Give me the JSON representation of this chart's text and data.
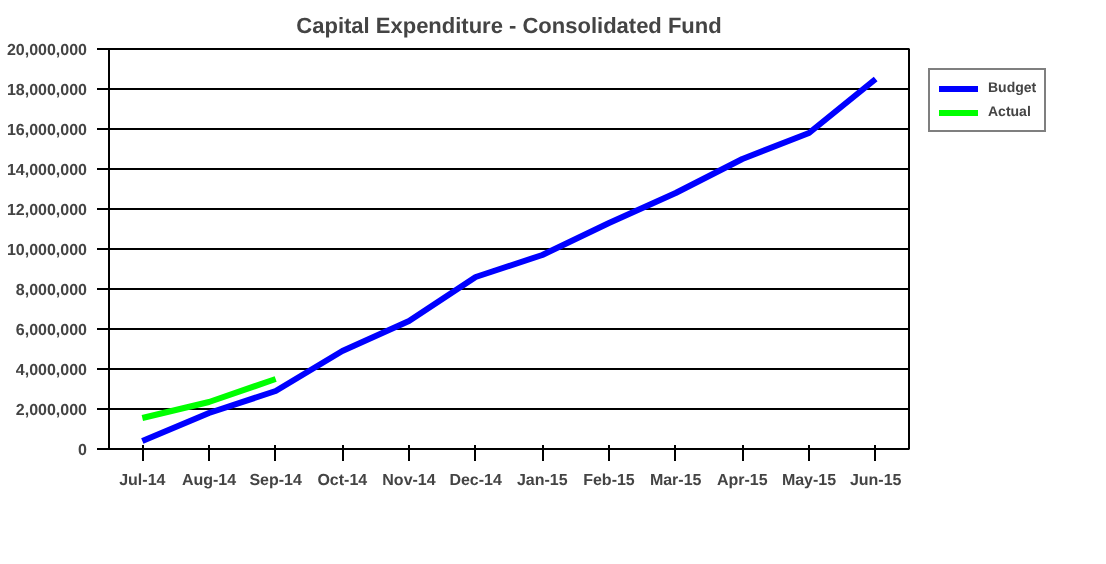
{
  "chart_data": {
    "type": "line",
    "title": "Capital Expenditure - Consolidated Fund",
    "categories": [
      "Jul-14",
      "Aug-14",
      "Sep-14",
      "Oct-14",
      "Nov-14",
      "Dec-14",
      "Jan-15",
      "Feb-15",
      "Mar-15",
      "Apr-15",
      "May-15",
      "Jun-15"
    ],
    "series": [
      {
        "name": "Budget",
        "color": "#0000ff",
        "values": [
          400000,
          1800000,
          2900000,
          4900000,
          6400000,
          8600000,
          9700000,
          11300000,
          12800000,
          14500000,
          15800000,
          18500000
        ]
      },
      {
        "name": "Actual",
        "color": "#00ff00",
        "values": [
          1550000,
          2350000,
          3500000,
          null,
          null,
          null,
          null,
          null,
          null,
          null,
          null,
          null
        ]
      }
    ],
    "ylim": [
      0,
      20000000
    ],
    "yticks": [
      {
        "value": 0,
        "label": "0"
      },
      {
        "value": 2000000,
        "label": "2,000,000"
      },
      {
        "value": 4000000,
        "label": "4,000,000"
      },
      {
        "value": 6000000,
        "label": "6,000,000"
      },
      {
        "value": 8000000,
        "label": "8,000,000"
      },
      {
        "value": 10000000,
        "label": "10,000,000"
      },
      {
        "value": 12000000,
        "label": "12,000,000"
      },
      {
        "value": 14000000,
        "label": "14,000,000"
      },
      {
        "value": 16000000,
        "label": "16,000,000"
      },
      {
        "value": 18000000,
        "label": "18,000,000"
      },
      {
        "value": 20000000,
        "label": "20,000,000"
      }
    ],
    "grid": "y",
    "legend": "top right",
    "marker": "none",
    "line_style": "solid"
  }
}
